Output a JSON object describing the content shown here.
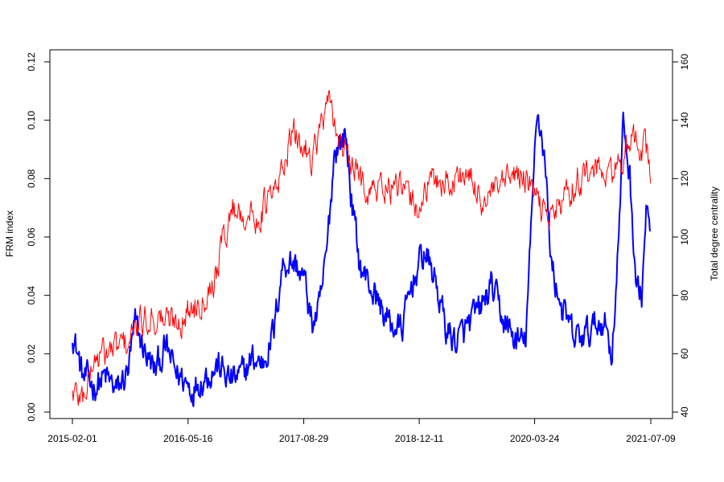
{
  "chart_data": {
    "type": "line",
    "title": "",
    "xlabel": "",
    "ylabel_left": "FRM index",
    "ylabel_right": "Total degree centrality",
    "x_tick_labels": [
      "2015-02-01",
      "2016-05-16",
      "2017-08-29",
      "2018-12-11",
      "2020-03-24",
      "2021-07-09"
    ],
    "x_range": [
      "2015-02-01",
      "2021-07-09"
    ],
    "y_left": {
      "lim": [
        0,
        0.12
      ],
      "ticks": [
        0.0,
        0.02,
        0.04,
        0.06,
        0.08,
        0.1,
        0.12
      ],
      "tick_labels": [
        "0.00",
        "0.02",
        "0.04",
        "0.06",
        "0.08",
        "0.10",
        "0.12"
      ]
    },
    "y_right": {
      "lim": [
        40,
        160
      ],
      "ticks": [
        40,
        60,
        80,
        100,
        120,
        140,
        160
      ],
      "tick_labels": [
        "40",
        "60",
        "80",
        "100",
        "120",
        "140",
        "160"
      ]
    },
    "grid": false,
    "legend": "none",
    "series": [
      {
        "axis": "left",
        "color": "#0000ff",
        "points": [
          [
            "2015-02-01",
            0.028
          ],
          [
            "2015-03-15",
            0.012
          ],
          [
            "2015-05-01",
            0.009
          ],
          [
            "2015-06-15",
            0.012
          ],
          [
            "2015-08-01",
            0.007
          ],
          [
            "2015-09-15",
            0.014
          ],
          [
            "2015-10-15",
            0.03
          ],
          [
            "2015-11-15",
            0.022
          ],
          [
            "2016-01-01",
            0.014
          ],
          [
            "2016-02-15",
            0.022
          ],
          [
            "2016-04-01",
            0.013
          ],
          [
            "2016-05-01",
            0.011
          ],
          [
            "2016-06-01",
            0.008
          ],
          [
            "2016-07-01",
            0.011
          ],
          [
            "2016-08-01",
            0.013
          ],
          [
            "2016-09-15",
            0.016
          ],
          [
            "2016-11-01",
            0.011
          ],
          [
            "2016-12-15",
            0.012
          ],
          [
            "2017-02-01",
            0.018
          ],
          [
            "2017-03-15",
            0.017
          ],
          [
            "2017-05-01",
            0.028
          ],
          [
            "2017-06-01",
            0.05
          ],
          [
            "2017-07-01",
            0.052
          ],
          [
            "2017-08-01",
            0.05
          ],
          [
            "2017-09-01",
            0.045
          ],
          [
            "2017-10-01",
            0.03
          ],
          [
            "2017-11-01",
            0.035
          ],
          [
            "2017-12-01",
            0.055
          ],
          [
            "2018-01-01",
            0.09
          ],
          [
            "2018-02-15",
            0.095
          ],
          [
            "2018-03-15",
            0.07
          ],
          [
            "2018-04-15",
            0.05
          ],
          [
            "2018-05-15",
            0.045
          ],
          [
            "2018-06-15",
            0.04
          ],
          [
            "2018-07-15",
            0.035
          ],
          [
            "2018-08-15",
            0.03
          ],
          [
            "2018-10-01",
            0.028
          ],
          [
            "2018-11-15",
            0.045
          ],
          [
            "2019-01-01",
            0.055
          ],
          [
            "2019-02-15",
            0.045
          ],
          [
            "2019-04-01",
            0.028
          ],
          [
            "2019-05-15",
            0.024
          ],
          [
            "2019-07-01",
            0.03
          ],
          [
            "2019-08-15",
            0.035
          ],
          [
            "2019-10-01",
            0.043
          ],
          [
            "2019-11-15",
            0.032
          ],
          [
            "2020-01-01",
            0.025
          ],
          [
            "2020-02-15",
            0.023
          ],
          [
            "2020-03-15",
            0.07
          ],
          [
            "2020-04-01",
            0.105
          ],
          [
            "2020-05-01",
            0.09
          ],
          [
            "2020-06-01",
            0.05
          ],
          [
            "2020-07-15",
            0.035
          ],
          [
            "2020-09-01",
            0.025
          ],
          [
            "2020-10-15",
            0.026
          ],
          [
            "2020-12-01",
            0.03
          ],
          [
            "2021-01-01",
            0.032
          ],
          [
            "2021-02-01",
            0.02
          ],
          [
            "2021-03-01",
            0.06
          ],
          [
            "2021-03-20",
            0.1
          ],
          [
            "2021-04-15",
            0.08
          ],
          [
            "2021-05-10",
            0.045
          ],
          [
            "2021-06-01",
            0.038
          ],
          [
            "2021-06-20",
            0.07
          ],
          [
            "2021-07-09",
            0.058
          ]
        ]
      },
      {
        "axis": "right",
        "color": "#ff0000",
        "points": [
          [
            "2015-02-01",
            47
          ],
          [
            "2015-03-15",
            45
          ],
          [
            "2015-05-01",
            58
          ],
          [
            "2015-06-15",
            60
          ],
          [
            "2015-08-01",
            62
          ],
          [
            "2015-09-15",
            64
          ],
          [
            "2015-11-01",
            70
          ],
          [
            "2015-12-15",
            73
          ],
          [
            "2016-02-01",
            72
          ],
          [
            "2016-03-15",
            71
          ],
          [
            "2016-05-01",
            73
          ],
          [
            "2016-06-15",
            77
          ],
          [
            "2016-08-01",
            82
          ],
          [
            "2016-09-01",
            86
          ],
          [
            "2016-10-01",
            98
          ],
          [
            "2016-11-15",
            110
          ],
          [
            "2017-01-01",
            108
          ],
          [
            "2017-02-15",
            106
          ],
          [
            "2017-04-01",
            112
          ],
          [
            "2017-05-15",
            116
          ],
          [
            "2017-06-15",
            128
          ],
          [
            "2017-07-15",
            135
          ],
          [
            "2017-08-15",
            132
          ],
          [
            "2017-10-01",
            128
          ],
          [
            "2017-11-15",
            140
          ],
          [
            "2017-12-15",
            145
          ],
          [
            "2018-01-15",
            135
          ],
          [
            "2018-03-01",
            125
          ],
          [
            "2018-04-15",
            120
          ],
          [
            "2018-06-01",
            115
          ],
          [
            "2018-07-15",
            118
          ],
          [
            "2018-09-01",
            116
          ],
          [
            "2018-10-15",
            115
          ],
          [
            "2018-12-01",
            110
          ],
          [
            "2019-01-15",
            117
          ],
          [
            "2019-03-01",
            120
          ],
          [
            "2019-04-15",
            118
          ],
          [
            "2019-06-01",
            122
          ],
          [
            "2019-07-15",
            118
          ],
          [
            "2019-09-01",
            112
          ],
          [
            "2019-10-15",
            115
          ],
          [
            "2019-12-01",
            118
          ],
          [
            "2020-01-15",
            122
          ],
          [
            "2020-03-01",
            118
          ],
          [
            "2020-04-15",
            110
          ],
          [
            "2020-06-01",
            108
          ],
          [
            "2020-07-15",
            112
          ],
          [
            "2020-09-01",
            118
          ],
          [
            "2020-10-15",
            122
          ],
          [
            "2020-12-01",
            123
          ],
          [
            "2021-01-15",
            120
          ],
          [
            "2021-03-01",
            125
          ],
          [
            "2021-04-15",
            130
          ],
          [
            "2021-05-15",
            133
          ],
          [
            "2021-06-15",
            130
          ],
          [
            "2021-07-09",
            123
          ]
        ]
      }
    ]
  }
}
